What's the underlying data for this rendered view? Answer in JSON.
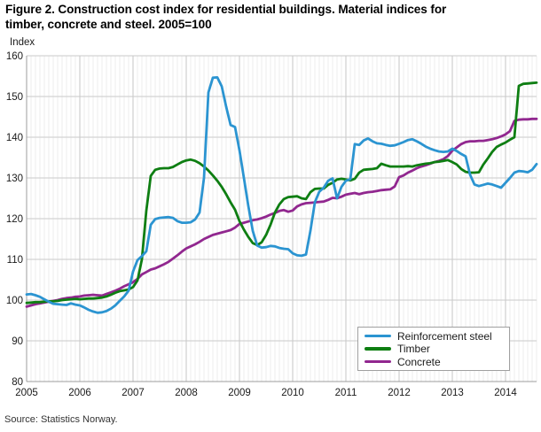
{
  "title": {
    "line1": "Figure 2. Construction cost index for residential buildings. Material indices for",
    "line2": "timber, concrete and steel. 2005=100"
  },
  "axis": {
    "unit_label": "Index",
    "y_ticks": [
      160,
      150,
      140,
      130,
      120,
      110,
      100,
      90,
      80
    ],
    "x_years": [
      2005,
      2006,
      2007,
      2008,
      2009,
      2010,
      2011,
      2012,
      2013,
      2014
    ]
  },
  "source": "Source: Statistics Norway.",
  "colors": {
    "steel": "#2b94d1",
    "timber": "#0e7e12",
    "concrete": "#91278f",
    "grid_minor": "#ededed",
    "grid_year": "#c6c6c6",
    "grid_horizontal": "#c9c9c9",
    "axis_line": "#9c9c9c",
    "tick_text": "#1a1a1a"
  },
  "chart_data": {
    "type": "line",
    "title": "Figure 2. Construction cost index for residential buildings. Material indices for timber, concrete and steel. 2005=100",
    "ylabel": "Index",
    "ylim": [
      80,
      160
    ],
    "x_range": [
      "2005-01",
      "2014-08"
    ],
    "x_frequency": "monthly",
    "grid": true,
    "legend_position": "inside-lower-right",
    "series": [
      {
        "name": "Reinforcement steel",
        "color": "#2b94d1",
        "values": [
          101.4,
          101.5,
          101.2,
          100.8,
          100.2,
          99.6,
          99.1,
          99.0,
          98.9,
          98.8,
          99.2,
          98.9,
          98.7,
          98.2,
          97.6,
          97.2,
          96.9,
          97.0,
          97.3,
          97.9,
          98.7,
          99.8,
          100.9,
          102.3,
          107.0,
          109.8,
          110.8,
          112.0,
          118.5,
          119.9,
          120.2,
          120.3,
          120.4,
          120.2,
          119.4,
          119.0,
          119.0,
          119.1,
          119.8,
          121.5,
          130.0,
          151.0,
          154.6,
          154.7,
          152.5,
          147.5,
          143.0,
          142.5,
          136.8,
          130.0,
          123.1,
          117.0,
          113.4,
          112.9,
          113.0,
          113.3,
          113.2,
          112.8,
          112.6,
          112.5,
          111.5,
          111.0,
          110.9,
          111.2,
          117.0,
          124.0,
          126.6,
          127.6,
          129.3,
          129.9,
          125.0,
          127.8,
          129.3,
          129.7,
          138.3,
          138.1,
          139.2,
          139.7,
          139.0,
          138.5,
          138.4,
          138.1,
          137.9,
          138.0,
          138.4,
          138.8,
          139.3,
          139.5,
          139.0,
          138.4,
          137.7,
          137.2,
          136.8,
          136.5,
          136.4,
          136.5,
          137.2,
          136.6,
          135.9,
          135.3,
          130.8,
          128.4,
          128.0,
          128.3,
          128.6,
          128.4,
          128.0,
          127.6,
          128.8,
          130.0,
          131.3,
          131.7,
          131.6,
          131.4,
          132.0,
          133.4
        ]
      },
      {
        "name": "Timber",
        "color": "#0e7e12",
        "values": [
          99.3,
          99.4,
          99.5,
          99.5,
          99.6,
          99.7,
          99.7,
          99.8,
          100.0,
          100.1,
          100.2,
          100.3,
          100.2,
          100.3,
          100.4,
          100.4,
          100.5,
          100.6,
          100.9,
          101.3,
          101.8,
          102.2,
          102.4,
          102.6,
          103.2,
          104.8,
          110.0,
          122.0,
          130.5,
          132.0,
          132.3,
          132.4,
          132.4,
          132.7,
          133.3,
          133.9,
          134.3,
          134.5,
          134.2,
          133.6,
          132.8,
          131.8,
          130.6,
          129.3,
          127.8,
          126.0,
          124.0,
          122.2,
          119.4,
          117.3,
          115.5,
          114.0,
          113.5,
          114.2,
          116.0,
          118.5,
          121.5,
          123.5,
          124.8,
          125.3,
          125.4,
          125.5,
          125.0,
          124.8,
          126.5,
          127.3,
          127.4,
          127.4,
          128.3,
          128.8,
          129.6,
          129.8,
          129.6,
          129.4,
          129.8,
          131.3,
          132.0,
          132.1,
          132.2,
          132.4,
          133.5,
          133.1,
          132.8,
          132.8,
          132.8,
          132.8,
          132.9,
          132.8,
          133.1,
          133.3,
          133.5,
          133.6,
          133.9,
          134.0,
          134.2,
          134.4,
          133.9,
          133.3,
          132.2,
          131.5,
          131.3,
          131.3,
          131.4,
          133.3,
          134.8,
          136.4,
          137.6,
          138.2,
          138.7,
          139.4,
          140.0,
          152.6,
          153.1,
          153.2,
          153.3,
          153.4
        ]
      },
      {
        "name": "Concrete",
        "color": "#91278f",
        "values": [
          98.4,
          98.7,
          99.0,
          99.2,
          99.4,
          99.6,
          99.8,
          100.0,
          100.3,
          100.5,
          100.6,
          100.8,
          100.9,
          101.1,
          101.2,
          101.3,
          101.2,
          101.1,
          101.5,
          101.9,
          102.3,
          102.8,
          103.4,
          103.9,
          104.4,
          105.2,
          106.3,
          106.9,
          107.5,
          107.8,
          108.3,
          108.8,
          109.4,
          110.2,
          111.0,
          111.9,
          112.7,
          113.2,
          113.7,
          114.3,
          115.0,
          115.5,
          116.0,
          116.3,
          116.6,
          116.9,
          117.2,
          117.8,
          118.7,
          119.0,
          119.3,
          119.6,
          119.8,
          120.1,
          120.5,
          121.0,
          121.4,
          121.9,
          122.1,
          121.7,
          122.0,
          123.0,
          123.5,
          123.8,
          123.9,
          124.0,
          124.1,
          124.2,
          124.6,
          125.1,
          125.0,
          125.4,
          125.9,
          126.1,
          126.3,
          126.0,
          126.3,
          126.5,
          126.6,
          126.8,
          127.0,
          127.1,
          127.2,
          127.9,
          130.2,
          130.6,
          131.3,
          131.8,
          132.4,
          132.8,
          133.1,
          133.5,
          133.9,
          134.2,
          134.6,
          135.4,
          136.7,
          137.5,
          138.3,
          138.8,
          139.0,
          139.0,
          139.1,
          139.1,
          139.3,
          139.5,
          139.8,
          140.2,
          140.7,
          141.5,
          144.0,
          144.3,
          144.4,
          144.4,
          144.5,
          144.5
        ]
      }
    ]
  }
}
